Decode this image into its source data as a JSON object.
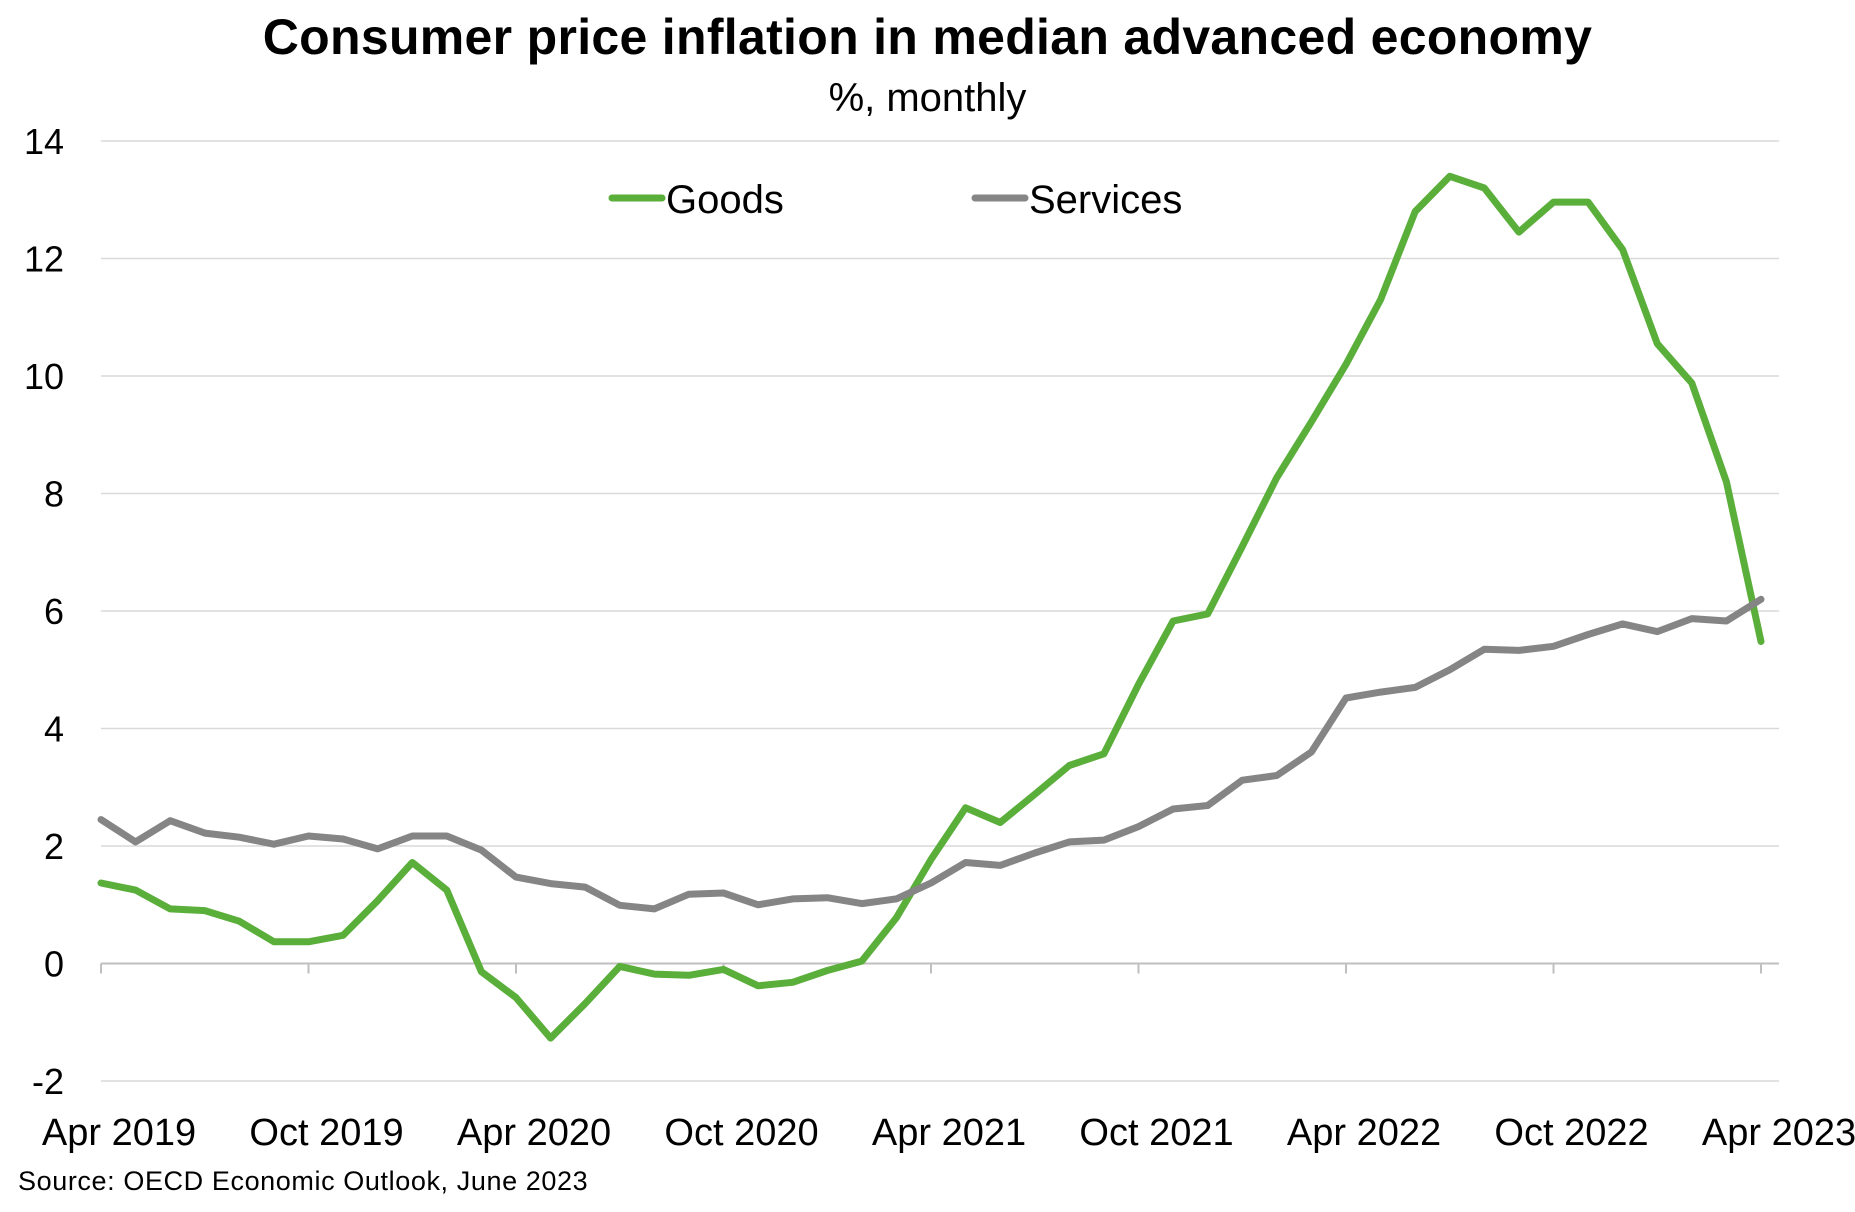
{
  "colors": {
    "goods": "#5aae3a",
    "services": "#858585",
    "grid": "#d9d9d9",
    "axis": "#bfbfbf"
  },
  "source": "Source: OECD Economic Outlook, June 2023",
  "chart_data": {
    "type": "line",
    "title": "Consumer price inflation in median advanced economy",
    "subtitle": "%, monthly",
    "xlabel": "",
    "ylabel": "",
    "ylim": [
      -2,
      14
    ],
    "yticks": [
      -2,
      0,
      2,
      4,
      6,
      8,
      10,
      12,
      14
    ],
    "grid": true,
    "legend_position": "top-center",
    "x_tick_labels": [
      "Apr 2019",
      "Oct 2019",
      "Apr 2020",
      "Oct 2020",
      "Apr 2021",
      "Oct 2021",
      "Apr 2022",
      "Oct 2022",
      "Apr 2023"
    ],
    "x": [
      "Apr 2019",
      "May 2019",
      "Jun 2019",
      "Jul 2019",
      "Aug 2019",
      "Sep 2019",
      "Oct 2019",
      "Nov 2019",
      "Dec 2019",
      "Jan 2020",
      "Feb 2020",
      "Mar 2020",
      "Apr 2020",
      "May 2020",
      "Jun 2020",
      "Jul 2020",
      "Aug 2020",
      "Sep 2020",
      "Oct 2020",
      "Nov 2020",
      "Dec 2020",
      "Jan 2021",
      "Feb 2021",
      "Mar 2021",
      "Apr 2021",
      "May 2021",
      "Jun 2021",
      "Jul 2021",
      "Aug 2021",
      "Sep 2021",
      "Oct 2021",
      "Nov 2021",
      "Dec 2021",
      "Jan 2022",
      "Feb 2022",
      "Mar 2022",
      "Apr 2022",
      "May 2022",
      "Jun 2022",
      "Jul 2022",
      "Aug 2022",
      "Sep 2022",
      "Oct 2022",
      "Nov 2022",
      "Dec 2022",
      "Jan 2023",
      "Feb 2023",
      "Mar 2023",
      "Apr 2023"
    ],
    "series": [
      {
        "name": "Goods",
        "color": "#5aae3a",
        "values": [
          1.37,
          1.25,
          0.93,
          0.9,
          0.72,
          0.37,
          0.37,
          0.48,
          1.07,
          1.72,
          1.25,
          -0.14,
          -0.58,
          -1.27,
          -0.68,
          -0.05,
          -0.18,
          -0.2,
          -0.1,
          -0.38,
          -0.32,
          -0.12,
          0.04,
          0.78,
          1.77,
          2.65,
          2.4,
          2.88,
          3.37,
          3.57,
          4.75,
          5.83,
          5.95,
          7.1,
          8.27,
          9.22,
          10.2,
          11.3,
          12.8,
          13.4,
          13.2,
          12.45,
          12.96,
          12.96,
          12.15,
          10.55,
          9.88,
          8.2,
          5.48
        ]
      },
      {
        "name": "Services",
        "color": "#858585",
        "values": [
          2.45,
          2.07,
          2.43,
          2.22,
          2.15,
          2.03,
          2.17,
          2.12,
          1.95,
          2.17,
          2.17,
          1.93,
          1.47,
          1.36,
          1.3,
          0.99,
          0.93,
          1.18,
          1.2,
          1.0,
          1.1,
          1.12,
          1.02,
          1.1,
          1.37,
          1.72,
          1.67,
          1.88,
          2.07,
          2.1,
          2.33,
          2.63,
          2.69,
          3.12,
          3.2,
          3.6,
          4.52,
          4.62,
          4.7,
          5.0,
          5.35,
          5.33,
          5.4,
          5.6,
          5.78,
          5.65,
          5.87,
          5.83,
          6.2
        ]
      }
    ]
  }
}
